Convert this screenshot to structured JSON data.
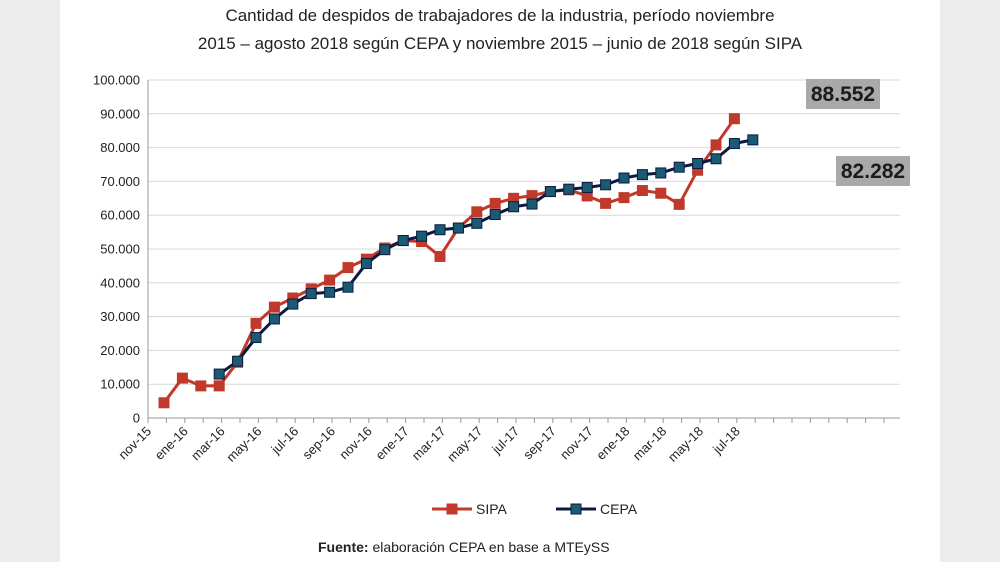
{
  "chart_data": {
    "type": "line",
    "title_line1": "Cantidad de despidos de trabajadores de la industria, período noviembre",
    "title_line2": "2015 – agosto 2018 según CEPA y noviembre 2015 – junio de 2018 según SIPA",
    "source_label": "Fuente:",
    "source_text": " elaboración CEPA en base a MTEySS",
    "ylim": [
      0,
      100000
    ],
    "y_ticks": [
      0,
      10000,
      20000,
      30000,
      40000,
      50000,
      60000,
      70000,
      80000,
      90000,
      100000
    ],
    "y_tick_labels": [
      "0",
      "10.000",
      "20.000",
      "30.000",
      "40.000",
      "50.000",
      "60.000",
      "70.000",
      "80.000",
      "90.000",
      "100.000"
    ],
    "x_tick_labels": [
      "nov-15",
      "ene-16",
      "mar-16",
      "may-16",
      "jul-16",
      "sep-16",
      "nov-16",
      "ene-17",
      "mar-17",
      "may-17",
      "jul-17",
      "sep-17",
      "nov-17",
      "ene-18",
      "mar-18",
      "may-18",
      "jul-18"
    ],
    "grid": "horizontal",
    "legend_position": "bottom",
    "series": [
      {
        "name": "SIPA",
        "color": "#c0392b",
        "line_color": "#c0392b",
        "marker_color": "#c0392b",
        "values": [
          4500,
          11800,
          9500,
          9500,
          16500,
          28000,
          32800,
          35500,
          38200,
          40800,
          44500,
          47000,
          50300,
          52500,
          52200,
          47800,
          56200,
          61000,
          63500,
          65000,
          65800,
          67000,
          67500,
          65700,
          63500,
          65200,
          67300,
          66500,
          63200,
          73300,
          80800,
          88552
        ]
      },
      {
        "name": "CEPA",
        "color": "#1a5a73",
        "line_color": "#0d1a40",
        "marker_color": "#1a5a73",
        "start_index": 3,
        "values": [
          13000,
          16800,
          23800,
          29300,
          33700,
          36800,
          37200,
          38700,
          45700,
          49800,
          52500,
          53800,
          55700,
          56200,
          57600,
          60200,
          62500,
          63300,
          67000,
          67700,
          68200,
          69000,
          71000,
          72000,
          72500,
          74200,
          75300,
          76700,
          81200,
          82282
        ]
      }
    ],
    "annotations": [
      {
        "label": "88.552",
        "series": "SIPA",
        "value": 88552
      },
      {
        "label": "82.282",
        "series": "CEPA",
        "value": 82282
      }
    ]
  }
}
